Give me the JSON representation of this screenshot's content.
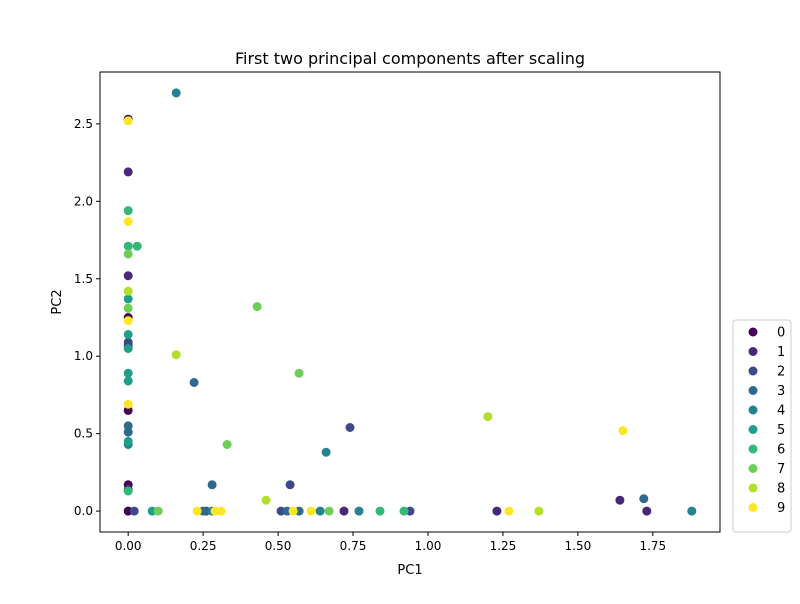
{
  "chart_data": {
    "type": "scatter",
    "title": "First two principal components after scaling",
    "xlabel": "PC1",
    "ylabel": "PC2",
    "xlim": [
      -0.094,
      1.974
    ],
    "ylim": [
      -0.135,
      2.835
    ],
    "xticks": [
      {
        "value": 0.0,
        "label": "0.00"
      },
      {
        "value": 0.25,
        "label": "0.25"
      },
      {
        "value": 0.5,
        "label": "0.50"
      },
      {
        "value": 0.75,
        "label": "0.75"
      },
      {
        "value": 1.0,
        "label": "1.00"
      },
      {
        "value": 1.25,
        "label": "1.25"
      },
      {
        "value": 1.5,
        "label": "1.50"
      },
      {
        "value": 1.75,
        "label": "1.75"
      }
    ],
    "yticks": [
      {
        "value": 0.0,
        "label": "0.0"
      },
      {
        "value": 0.5,
        "label": "0.5"
      },
      {
        "value": 1.0,
        "label": "1.0"
      },
      {
        "value": 1.5,
        "label": "1.5"
      },
      {
        "value": 2.0,
        "label": "2.0"
      },
      {
        "value": 2.5,
        "label": "2.5"
      }
    ],
    "grid": false,
    "legend_position": "outside lower right",
    "legend": [
      {
        "label": "0",
        "color": "#440154"
      },
      {
        "label": "1",
        "color": "#482878"
      },
      {
        "label": "2",
        "color": "#3e4989"
      },
      {
        "label": "3",
        "color": "#31688e"
      },
      {
        "label": "4",
        "color": "#26828e"
      },
      {
        "label": "5",
        "color": "#1f9e89"
      },
      {
        "label": "6",
        "color": "#35b779"
      },
      {
        "label": "7",
        "color": "#6ece58"
      },
      {
        "label": "8",
        "color": "#b5de2b"
      },
      {
        "label": "9",
        "color": "#fde725"
      }
    ],
    "points": [
      {
        "x": 0.0,
        "y": 2.53,
        "label": 0
      },
      {
        "x": 0.0,
        "y": 1.25,
        "label": 0
      },
      {
        "x": 0.0,
        "y": 0.65,
        "label": 0
      },
      {
        "x": 0.0,
        "y": 0.17,
        "label": 0
      },
      {
        "x": 0.0,
        "y": 0.0,
        "label": 0
      },
      {
        "x": 0.0,
        "y": 2.19,
        "label": 1
      },
      {
        "x": 0.0,
        "y": 1.52,
        "label": 1
      },
      {
        "x": 0.0,
        "y": 1.07,
        "label": 1
      },
      {
        "x": 0.0,
        "y": 0.14,
        "label": 1
      },
      {
        "x": 0.72,
        "y": 0.0,
        "label": 1
      },
      {
        "x": 1.23,
        "y": 0.0,
        "label": 1
      },
      {
        "x": 1.64,
        "y": 0.07,
        "label": 1
      },
      {
        "x": 1.73,
        "y": 0.0,
        "label": 1
      },
      {
        "x": 0.0,
        "y": 1.09,
        "label": 2
      },
      {
        "x": 0.02,
        "y": 0.0,
        "label": 2
      },
      {
        "x": 0.26,
        "y": 0.0,
        "label": 2
      },
      {
        "x": 0.51,
        "y": 0.0,
        "label": 2
      },
      {
        "x": 0.54,
        "y": 0.17,
        "label": 2
      },
      {
        "x": 0.74,
        "y": 0.54,
        "label": 2
      },
      {
        "x": 0.94,
        "y": 0.0,
        "label": 2
      },
      {
        "x": 0.0,
        "y": 0.55,
        "label": 3
      },
      {
        "x": 0.0,
        "y": 0.51,
        "label": 3
      },
      {
        "x": 0.22,
        "y": 0.83,
        "label": 3
      },
      {
        "x": 0.25,
        "y": 0.0,
        "label": 3
      },
      {
        "x": 0.28,
        "y": 0.17,
        "label": 3
      },
      {
        "x": 0.53,
        "y": 0.0,
        "label": 3
      },
      {
        "x": 0.57,
        "y": 0.0,
        "label": 3
      },
      {
        "x": 1.72,
        "y": 0.08,
        "label": 3
      },
      {
        "x": 0.16,
        "y": 2.7,
        "label": 4
      },
      {
        "x": 0.0,
        "y": 0.43,
        "label": 4
      },
      {
        "x": 0.28,
        "y": 0.0,
        "label": 4
      },
      {
        "x": 0.64,
        "y": 0.0,
        "label": 4
      },
      {
        "x": 0.66,
        "y": 0.38,
        "label": 4
      },
      {
        "x": 0.77,
        "y": 0.0,
        "label": 4
      },
      {
        "x": 1.88,
        "y": 0.0,
        "label": 4
      },
      {
        "x": 0.0,
        "y": 1.37,
        "label": 5
      },
      {
        "x": 0.0,
        "y": 1.14,
        "label": 5
      },
      {
        "x": 0.0,
        "y": 1.05,
        "label": 5
      },
      {
        "x": 0.0,
        "y": 0.89,
        "label": 5
      },
      {
        "x": 0.0,
        "y": 0.84,
        "label": 5
      },
      {
        "x": 0.0,
        "y": 0.45,
        "label": 5
      },
      {
        "x": 0.08,
        "y": 0.0,
        "label": 5
      },
      {
        "x": 0.0,
        "y": 1.94,
        "label": 6
      },
      {
        "x": 0.0,
        "y": 1.71,
        "label": 6
      },
      {
        "x": 0.03,
        "y": 1.71,
        "label": 6
      },
      {
        "x": 0.0,
        "y": 0.13,
        "label": 6
      },
      {
        "x": 0.84,
        "y": 0.0,
        "label": 6
      },
      {
        "x": 0.92,
        "y": 0.0,
        "label": 6
      },
      {
        "x": 0.0,
        "y": 1.66,
        "label": 7
      },
      {
        "x": 0.0,
        "y": 1.31,
        "label": 7
      },
      {
        "x": 0.43,
        "y": 1.32,
        "label": 7
      },
      {
        "x": 0.57,
        "y": 0.89,
        "label": 7
      },
      {
        "x": 0.33,
        "y": 0.43,
        "label": 7
      },
      {
        "x": 0.1,
        "y": 0.0,
        "label": 7
      },
      {
        "x": 0.67,
        "y": 0.0,
        "label": 7
      },
      {
        "x": 0.0,
        "y": 1.42,
        "label": 8
      },
      {
        "x": 0.16,
        "y": 1.01,
        "label": 8
      },
      {
        "x": 0.46,
        "y": 0.07,
        "label": 8
      },
      {
        "x": 1.2,
        "y": 0.61,
        "label": 8
      },
      {
        "x": 1.37,
        "y": 0.0,
        "label": 8
      },
      {
        "x": 0.0,
        "y": 2.52,
        "label": 9
      },
      {
        "x": 0.0,
        "y": 1.87,
        "label": 9
      },
      {
        "x": 0.0,
        "y": 1.23,
        "label": 9
      },
      {
        "x": 0.0,
        "y": 0.69,
        "label": 9
      },
      {
        "x": 0.23,
        "y": 0.0,
        "label": 9
      },
      {
        "x": 0.29,
        "y": 0.0,
        "label": 9
      },
      {
        "x": 0.31,
        "y": 0.0,
        "label": 9
      },
      {
        "x": 0.55,
        "y": 0.0,
        "label": 9
      },
      {
        "x": 0.61,
        "y": 0.0,
        "label": 9
      },
      {
        "x": 1.27,
        "y": 0.0,
        "label": 9
      },
      {
        "x": 1.65,
        "y": 0.52,
        "label": 9
      }
    ]
  }
}
